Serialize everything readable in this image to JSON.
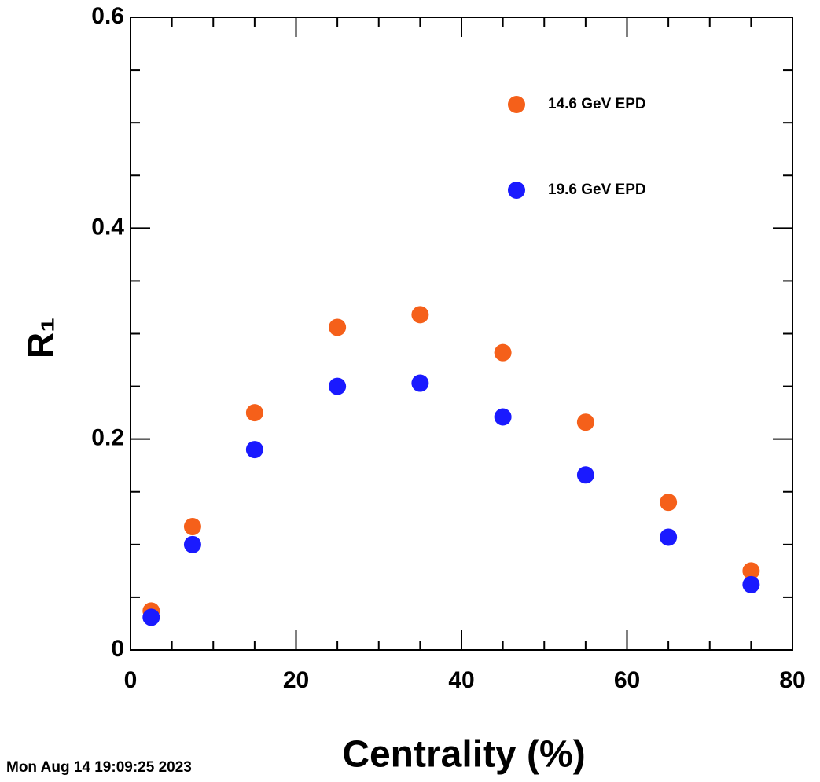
{
  "chart_data": {
    "type": "scatter",
    "x_label": "Centrality (%)",
    "y_label": "R₁",
    "timestamp": "Mon Aug 14 19:09:25 2023",
    "x": [
      2.5,
      7.5,
      15,
      25,
      35,
      45,
      55,
      65,
      75
    ],
    "series": [
      {
        "name": "14.6 GeV EPD",
        "color": "#f5601a",
        "values": [
          0.037,
          0.117,
          0.225,
          0.306,
          0.318,
          0.282,
          0.216,
          0.14,
          0.075
        ]
      },
      {
        "name": "19.6 GeV EPD",
        "color": "#1a1aff",
        "values": [
          0.031,
          0.1,
          0.19,
          0.25,
          0.253,
          0.221,
          0.166,
          0.107,
          0.062
        ]
      }
    ],
    "xlim": [
      0,
      80
    ],
    "xticks": [
      0,
      20,
      40,
      60,
      80
    ],
    "ylim": [
      0,
      0.6
    ],
    "yticks": [
      0,
      0.2,
      0.4,
      0.6
    ]
  }
}
